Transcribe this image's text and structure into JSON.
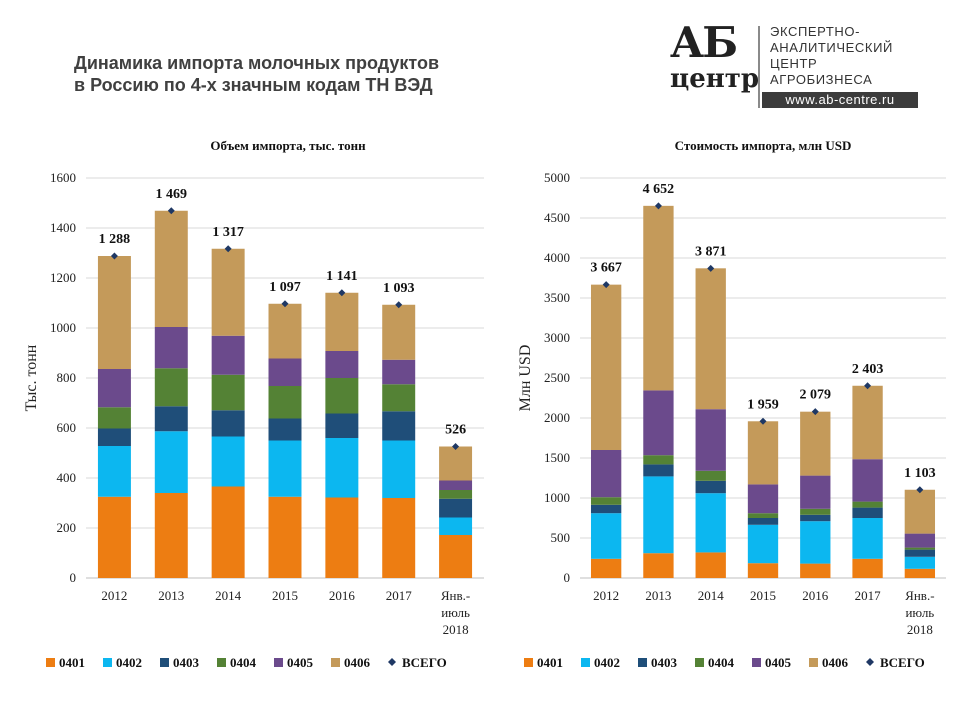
{
  "page": {
    "title_lines": [
      "Динамика импорта молочных продуктов",
      "в Россию по 4-х значным кодам ТН ВЭД"
    ]
  },
  "logo": {
    "mark_top": "АБ",
    "mark_bottom": "центр",
    "lines": [
      "ЭКСПЕРТНО-",
      "АНАЛИТИЧЕСКИЙ",
      "ЦЕНТР",
      "АГРОБИЗНЕСА"
    ],
    "url": "www.ab-centre.ru"
  },
  "colors": {
    "0401": "#ed7d12",
    "0402": "#0cb7f0",
    "0403": "#1f4e79",
    "0404": "#548235",
    "0405": "#6b4a8c",
    "0406": "#c49a5a",
    "total_marker": "#1f3864",
    "grid": "#d9d9d9",
    "axis": "#bfbfbf"
  },
  "chart_data": [
    {
      "type": "bar",
      "stacked": true,
      "title": "Объем импорта, тыс. тонн",
      "ylabel": "Тыс. тонн",
      "xlabel": "",
      "categories": [
        "2012",
        "2013",
        "2014",
        "2015",
        "2016",
        "2017",
        "Янв.-июль 2018"
      ],
      "category_lines": [
        [
          "2012"
        ],
        [
          "2013"
        ],
        [
          "2014"
        ],
        [
          "2015"
        ],
        [
          "2016"
        ],
        [
          "2017"
        ],
        [
          "Янв.-",
          "июль",
          "2018"
        ]
      ],
      "ylim": [
        0,
        1600
      ],
      "yticks": [
        0,
        200,
        400,
        600,
        800,
        1000,
        1200,
        1400,
        1600
      ],
      "yticks_labels": [
        "0",
        "200",
        "400",
        "600",
        "800",
        "1000",
        "1200",
        "1400",
        "1600"
      ],
      "grid": true,
      "legend_position": "bottom",
      "series": [
        {
          "name": "0401",
          "values": [
            325,
            340,
            366,
            325,
            322,
            320,
            172
          ]
        },
        {
          "name": "0402",
          "values": [
            203,
            247,
            200,
            225,
            238,
            230,
            70
          ]
        },
        {
          "name": "0403",
          "values": [
            70,
            100,
            105,
            88,
            98,
            117,
            75
          ]
        },
        {
          "name": "0404",
          "values": [
            85,
            152,
            142,
            130,
            142,
            108,
            35
          ]
        },
        {
          "name": "0405",
          "values": [
            153,
            165,
            156,
            110,
            108,
            98,
            38
          ]
        },
        {
          "name": "0406",
          "values": [
            452,
            465,
            348,
            219,
            233,
            220,
            136
          ]
        }
      ],
      "totals": {
        "name": "ВСЕГО",
        "values": [
          1288,
          1469,
          1317,
          1097,
          1141,
          1093,
          526
        ],
        "labels": [
          "1 288",
          "1 469",
          "1 317",
          "1 097",
          "1 141",
          "1 093",
          "526"
        ]
      }
    },
    {
      "type": "bar",
      "stacked": true,
      "title": "Стоимость импорта, млн USD",
      "ylabel": "Млн USD",
      "xlabel": "",
      "categories": [
        "2012",
        "2013",
        "2014",
        "2015",
        "2016",
        "2017",
        "Янв.-июль 2018"
      ],
      "category_lines": [
        [
          "2012"
        ],
        [
          "2013"
        ],
        [
          "2014"
        ],
        [
          "2015"
        ],
        [
          "2016"
        ],
        [
          "2017"
        ],
        [
          "Янв.-",
          "июль",
          "2018"
        ]
      ],
      "ylim": [
        0,
        5000
      ],
      "yticks": [
        0,
        500,
        1000,
        1500,
        2000,
        2500,
        3000,
        3500,
        4000,
        4500,
        5000
      ],
      "yticks_labels": [
        "0",
        "500",
        "1000",
        "1500",
        "2000",
        "2500",
        "3000",
        "3500",
        "4000",
        "4500",
        "5000"
      ],
      "grid": true,
      "legend_position": "bottom",
      "series": [
        {
          "name": "0401",
          "values": [
            240,
            310,
            320,
            185,
            180,
            240,
            115
          ]
        },
        {
          "name": "0402",
          "values": [
            570,
            960,
            740,
            480,
            530,
            510,
            150
          ]
        },
        {
          "name": "0403",
          "values": [
            105,
            150,
            155,
            85,
            80,
            130,
            90
          ]
        },
        {
          "name": "0404",
          "values": [
            95,
            115,
            125,
            60,
            75,
            75,
            25
          ]
        },
        {
          "name": "0405",
          "values": [
            590,
            810,
            770,
            360,
            415,
            530,
            175
          ]
        },
        {
          "name": "0406",
          "values": [
            2067,
            2307,
            1761,
            789,
            799,
            918,
            548
          ]
        }
      ],
      "totals": {
        "name": "ВСЕГО",
        "values": [
          3667,
          4652,
          3871,
          1959,
          2079,
          2403,
          1103
        ],
        "labels": [
          "3 667",
          "4 652",
          "3 871",
          "1 959",
          "2 079",
          "2 403",
          "1 103"
        ]
      }
    }
  ]
}
